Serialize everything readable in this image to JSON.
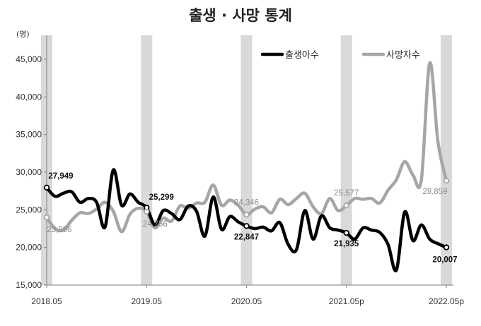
{
  "chart_data": {
    "type": "line",
    "title": "출생 · 사망 통계",
    "unit_label": "(명)",
    "ylim": [
      15000,
      45000
    ],
    "y_ticks": [
      "15,000",
      "20,000",
      "25,000",
      "30,000",
      "35,000",
      "40,000",
      "45,000"
    ],
    "y_tick_values": [
      15000,
      20000,
      25000,
      30000,
      35000,
      40000,
      45000
    ],
    "x_tick_labels": [
      "2018.05",
      "2019.05",
      "2020.05",
      "2021.05p",
      "2022.05p"
    ],
    "x_tick_months": [
      0,
      12,
      24,
      36,
      48
    ],
    "shaded_months": [
      0,
      12,
      24,
      36,
      48
    ],
    "grid": false,
    "legend_position": "top-right",
    "series": [
      {
        "name": "출생아수",
        "color": "#000000",
        "values": [
          27949,
          26800,
          27200,
          27400,
          26000,
          26500,
          26000,
          22700,
          30300,
          25600,
          27100,
          26000,
          25299,
          23000,
          24900,
          24500,
          23700,
          25500,
          24800,
          21500,
          26700,
          22400,
          24100,
          23400,
          22847,
          22500,
          22700,
          22200,
          23300,
          20400,
          19700,
          24900,
          21100,
          24200,
          22600,
          22300,
          21935,
          21100,
          22600,
          22300,
          22000,
          20400,
          17000,
          24700,
          20900,
          23000,
          21100,
          20500,
          20007
        ],
        "annotations": [
          {
            "month": 0,
            "text": "27,949"
          },
          {
            "month": 12,
            "text": "25,299"
          },
          {
            "month": 24,
            "text": "22,847"
          },
          {
            "month": 36,
            "text": "21,935"
          },
          {
            "month": 48,
            "text": "20,007"
          }
        ]
      },
      {
        "name": "사망자수",
        "color": "#a6a6a6",
        "values": [
          23996,
          22500,
          22300,
          23600,
          24600,
          24500,
          25100,
          26000,
          24800,
          22100,
          24400,
          25200,
          24756,
          22600,
          23900,
          23500,
          25500,
          25200,
          25900,
          26000,
          28300,
          25600,
          26300,
          25600,
          24346,
          25100,
          25400,
          24600,
          26400,
          25700,
          26500,
          27200,
          25400,
          24500,
          26500,
          24900,
          25577,
          26500,
          26400,
          26500,
          25900,
          27600,
          29000,
          31400,
          29600,
          29000,
          44500,
          34000,
          28859
        ],
        "annotations": [
          {
            "month": 0,
            "text": "23,996"
          },
          {
            "month": 12,
            "text": "24,756"
          },
          {
            "month": 24,
            "text": "24,346"
          },
          {
            "month": 36,
            "text": "25,577"
          },
          {
            "month": 48,
            "text": "28,859"
          }
        ]
      }
    ]
  }
}
